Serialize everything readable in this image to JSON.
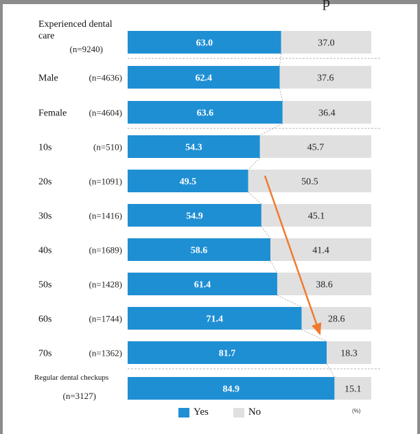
{
  "colors": {
    "yes": "#1f8fd4",
    "no": "#e0e0e0",
    "arrow": "#ef7a2e",
    "connector": "#9a9a9a"
  },
  "chart_data": {
    "type": "bar",
    "stacked": true,
    "orientation": "horizontal",
    "unit": "(%)",
    "xlim": [
      0,
      100
    ],
    "series": [
      {
        "name": "Yes",
        "values": [
          63.0,
          62.4,
          63.6,
          54.3,
          49.5,
          54.9,
          58.6,
          61.4,
          71.4,
          81.7,
          84.9
        ]
      },
      {
        "name": "No",
        "values": [
          37.0,
          37.6,
          36.4,
          45.7,
          50.5,
          45.1,
          41.4,
          38.6,
          28.6,
          18.3,
          15.1
        ]
      }
    ],
    "rows": [
      {
        "label": "Experienced dental care",
        "n": "(n=9240)",
        "yes": "63.0",
        "no": "37.0"
      },
      {
        "label": "Male",
        "n": "(n=4636)",
        "yes": "62.4",
        "no": "37.6"
      },
      {
        "label": "Female",
        "n": "(n=4604)",
        "yes": "63.6",
        "no": "36.4"
      },
      {
        "label": "10s",
        "n": "(n=510)",
        "yes": "54.3",
        "no": "45.7"
      },
      {
        "label": "20s",
        "n": "(n=1091)",
        "yes": "49.5",
        "no": "50.5"
      },
      {
        "label": "30s",
        "n": "(n=1416)",
        "yes": "54.9",
        "no": "45.1"
      },
      {
        "label": "40s",
        "n": "(n=1689)",
        "yes": "58.6",
        "no": "41.4"
      },
      {
        "label": "50s",
        "n": "(n=1428)",
        "yes": "61.4",
        "no": "38.6"
      },
      {
        "label": "60s",
        "n": "(n=1744)",
        "yes": "71.4",
        "no": "28.6"
      },
      {
        "label": "70s",
        "n": "(n=1362)",
        "yes": "81.7",
        "no": "18.3"
      },
      {
        "label": "Regular dental checkups",
        "n": "(n=3127)",
        "yes": "84.9",
        "no": "15.1"
      }
    ],
    "legend": [
      "Yes",
      "No"
    ],
    "legend_position": "bottom",
    "annotation": "downward trend arrow from 20s to 70s"
  },
  "legend": {
    "yes": "Yes",
    "no": "No"
  },
  "unit_label": "(%)",
  "top_snippet": "p"
}
